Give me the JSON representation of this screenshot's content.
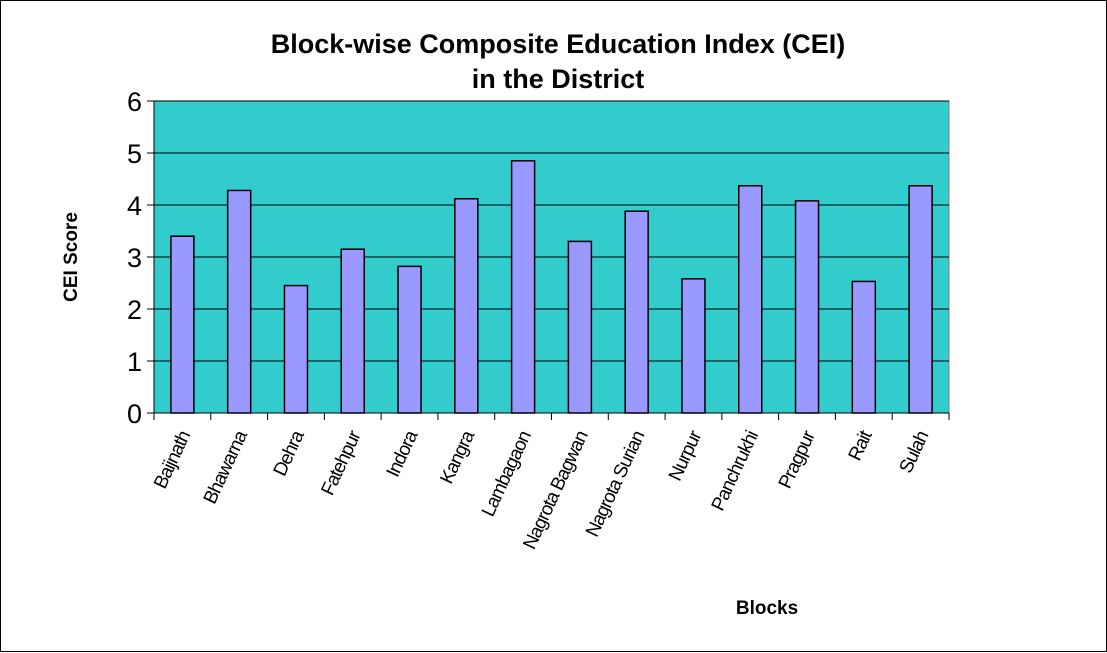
{
  "chart_data": {
    "type": "bar",
    "title": "Block-wise Composite Education Index  (CEI)",
    "subtitle": "in the District",
    "xlabel": "Blocks",
    "ylabel": "CEI Score",
    "ylim": [
      0,
      6
    ],
    "yticks": [
      "0",
      "1",
      "2",
      "3",
      "4",
      "5",
      "6"
    ],
    "grid": true,
    "legend": "none",
    "categories": [
      "Baijnath",
      "Bhawarna",
      "Dehra",
      "Fatehpur",
      "Indora",
      "Kangra",
      "Lambagaon",
      "Nagrota Bagwan",
      "Nagrota Surian",
      "Nurpur",
      "Panchrukhi",
      "Pragpur",
      "Rait",
      "Sulah"
    ],
    "values": [
      3.4,
      4.28,
      2.45,
      3.15,
      2.82,
      4.12,
      4.85,
      3.3,
      3.88,
      2.58,
      4.37,
      4.08,
      2.53,
      4.37
    ],
    "colors": {
      "plot_background": "#33CCCC",
      "bar_fill": "#9999FF",
      "bar_stroke": "#000000",
      "gridline": "#000000"
    }
  }
}
